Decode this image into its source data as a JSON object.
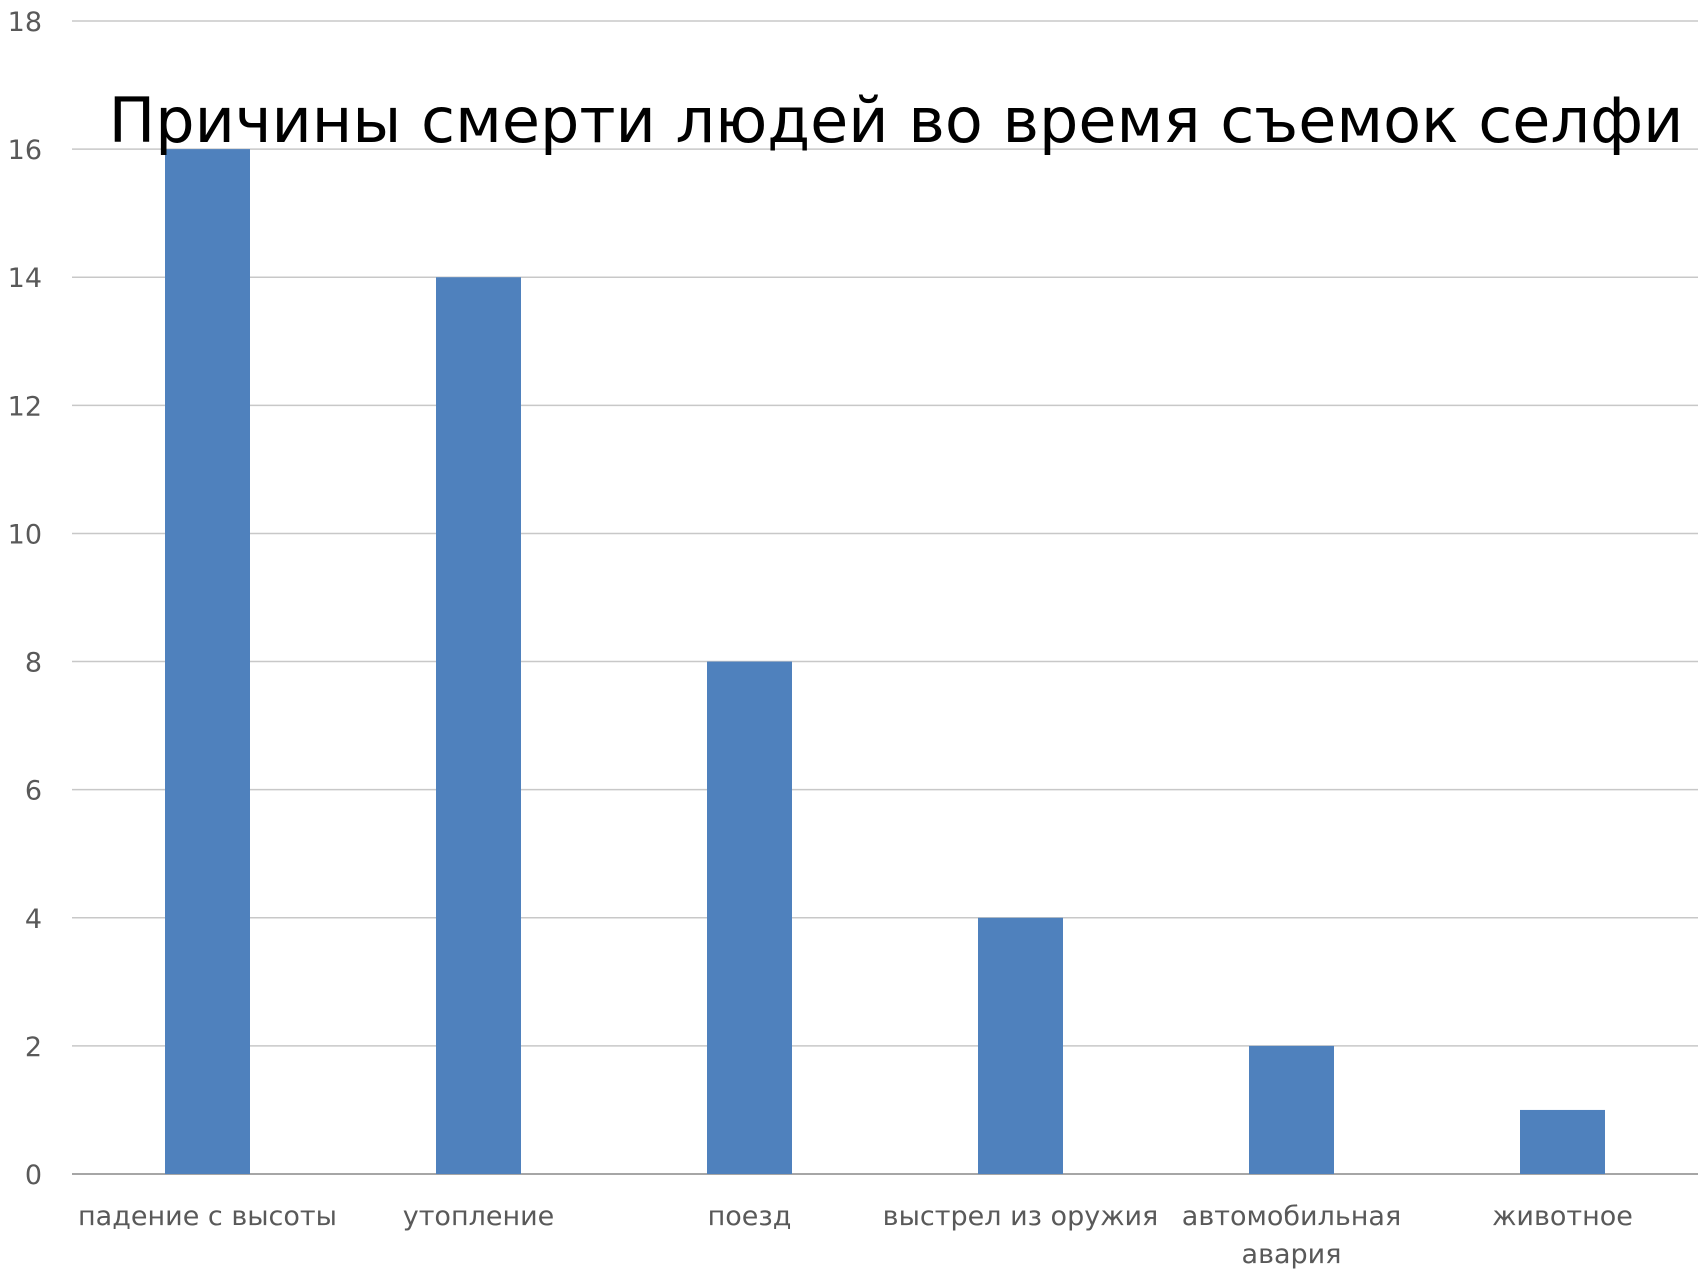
{
  "chart_data": {
    "type": "bar",
    "title": "Причины смерти людей во время съемок селфи",
    "categories": [
      [
        "падение с высоты"
      ],
      [
        "утопление"
      ],
      [
        "поезд"
      ],
      [
        "выстрел из оружия"
      ],
      [
        "автомобильная",
        "авария"
      ],
      [
        "животное"
      ]
    ],
    "values": [
      16,
      14,
      8,
      4,
      2,
      1
    ],
    "yticks": [
      "0",
      "2",
      "4",
      "6",
      "8",
      "10",
      "12",
      "14",
      "16",
      "18"
    ],
    "ylim": [
      0,
      18
    ],
    "grid": true,
    "legend": "none",
    "bar_color": "#4f81bd"
  }
}
